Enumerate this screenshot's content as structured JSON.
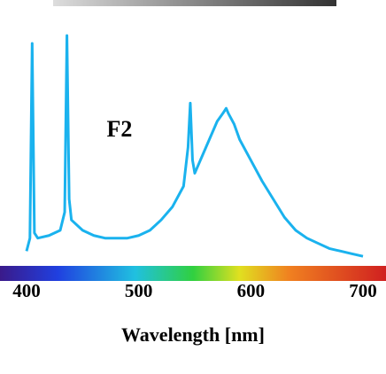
{
  "chart_data": {
    "type": "line",
    "title": "F2",
    "x_label": "Wavelength [nm]",
    "x": [
      400,
      403,
      405,
      407,
      410,
      420,
      430,
      434,
      436,
      438,
      440,
      450,
      460,
      470,
      480,
      490,
      500,
      510,
      520,
      530,
      540,
      544,
      546,
      548,
      550,
      560,
      570,
      575,
      578,
      580,
      585,
      590,
      600,
      610,
      620,
      630,
      640,
      650,
      660,
      670,
      680,
      690,
      700
    ],
    "series": [
      {
        "name": "F2",
        "color": "#1ab2ee",
        "values": [
          5,
          10,
          85,
          12,
          10,
          11,
          13,
          20,
          88,
          25,
          17,
          13,
          11,
          10,
          10,
          10,
          11,
          13,
          17,
          22,
          30,
          45,
          62,
          40,
          35,
          45,
          55,
          58,
          60,
          58,
          54,
          48,
          40,
          32,
          25,
          18,
          13,
          10,
          8,
          6,
          5,
          4,
          3
        ]
      }
    ],
    "xlim": [
      400,
      700
    ],
    "xticks": [
      400,
      500,
      600,
      700
    ],
    "ylim": [
      0,
      100
    ]
  }
}
